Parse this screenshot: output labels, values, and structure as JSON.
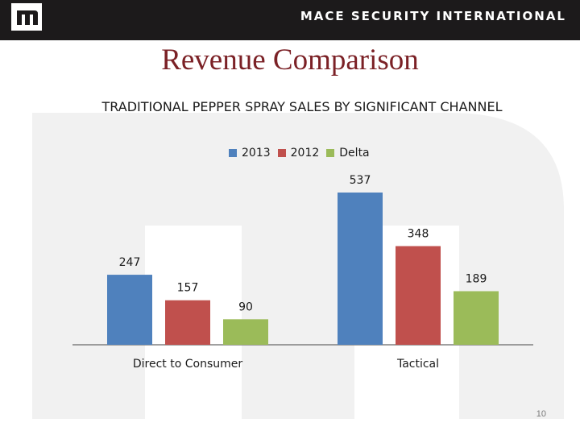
{
  "header": {
    "company": "MACE SECURITY INTERNATIONAL",
    "logo_icon": "mace-m-logo-icon"
  },
  "slide": {
    "title": "Revenue Comparison",
    "page_number": "10"
  },
  "colors": {
    "header_bg": "#1c1a1b",
    "title": "#7b2126",
    "series_2013": "#4f81bd",
    "series_2012": "#c0504d",
    "series_delta": "#9bbb59"
  },
  "chart_data": {
    "type": "bar",
    "title": "TRADITIONAL PEPPER SPRAY SALES BY SIGNIFICANT CHANNEL",
    "categories": [
      "Direct to Consumer",
      "Tactical"
    ],
    "series": [
      {
        "name": "2013",
        "color": "#4f81bd",
        "values": [
          247,
          537
        ],
        "labels": [
          "247",
          "537"
        ]
      },
      {
        "name": "2012",
        "color": "#c0504d",
        "values": [
          157,
          348
        ],
        "labels": [
          "157",
          "348"
        ]
      },
      {
        "name": "Delta",
        "color": "#9bbb59",
        "values": [
          90,
          189
        ],
        "labels": [
          "90",
          "189"
        ]
      }
    ],
    "xlabel": "",
    "ylabel": "",
    "ylim": [
      0,
      600
    ],
    "legend": "top-center",
    "grid": false
  }
}
